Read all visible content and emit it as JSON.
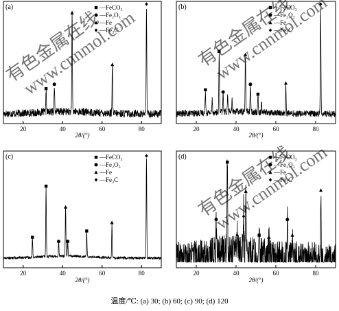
{
  "caption": "温度/℃: (a) 30; (b) 60; (c) 90; (d) 120",
  "watermark": [
    "有色金属在线",
    "www.cnnmol.com"
  ],
  "colors": {
    "line": "#000000",
    "axis": "#000000",
    "watermark": "#bdbdbd"
  },
  "chart_data": [
    {
      "type": "line",
      "panel_label": "(a)",
      "xlabel": "2θ/(°)",
      "xlim": [
        10,
        90
      ],
      "xticks": [
        20,
        40,
        60,
        80
      ],
      "xtick_labels": [
        "20",
        "40",
        "60",
        "80"
      ],
      "legend": [
        "—FeCO₃",
        "—Fe₂O₃",
        "—Fe",
        "—Fe₃C"
      ],
      "legend_markers": [
        "square",
        "circle",
        "triangle",
        "diamond"
      ],
      "noise": 0.035,
      "peaks": [
        {
          "x": 31.6,
          "y": 0.21,
          "marker": "square"
        },
        {
          "x": 35.8,
          "y": 0.25,
          "marker": "circle"
        },
        {
          "x": 44.8,
          "y": 0.9,
          "marker": "triangle"
        },
        {
          "x": 65.2,
          "y": 0.43,
          "marker": "triangle"
        },
        {
          "x": 82.5,
          "y": 0.98,
          "marker": "diamond"
        }
      ]
    },
    {
      "type": "line",
      "panel_label": "(b)",
      "xlabel": "2θ/(°)",
      "xlim": [
        10,
        90
      ],
      "xticks": [
        20,
        40,
        60,
        80
      ],
      "xtick_labels": [
        "20",
        "40",
        "60",
        "80"
      ],
      "legend": [
        "—FeCO₃",
        "—Fe₂O₃",
        "—Fe",
        "—Fe₃C"
      ],
      "legend_markers": [
        "square",
        "circle",
        "triangle",
        "diamond"
      ],
      "noise": 0.03,
      "peaks": [
        {
          "x": 24.6,
          "y": 0.2,
          "marker": "square"
        },
        {
          "x": 28.0,
          "y": 0.12,
          "marker": "none"
        },
        {
          "x": 31.5,
          "y": 0.55,
          "marker": "square"
        },
        {
          "x": 33.5,
          "y": 0.18,
          "marker": "circle"
        },
        {
          "x": 35.8,
          "y": 0.16,
          "marker": "none"
        },
        {
          "x": 38.0,
          "y": 0.1,
          "marker": "none"
        },
        {
          "x": 44.7,
          "y": 0.52,
          "marker": "triangle"
        },
        {
          "x": 47.2,
          "y": 0.25,
          "marker": "circle"
        },
        {
          "x": 51.0,
          "y": 0.16,
          "marker": "square"
        },
        {
          "x": 52.8,
          "y": 0.1,
          "marker": "none"
        },
        {
          "x": 65.0,
          "y": 0.26,
          "marker": "triangle"
        },
        {
          "x": 82.5,
          "y": 0.98,
          "marker": "diamond"
        }
      ]
    },
    {
      "type": "line",
      "panel_label": "(c)",
      "xlabel": "2θ/(°)",
      "xlim": [
        10,
        90
      ],
      "xticks": [
        20,
        40,
        60,
        80
      ],
      "xtick_labels": [
        "20",
        "40",
        "60",
        "80"
      ],
      "legend": [
        "—FeCO₃",
        "—Fe₂O₃",
        "—Fe",
        "—Fe₃C"
      ],
      "legend_markers": [
        "square",
        "circle",
        "triangle",
        "diamond"
      ],
      "noise": 0.012,
      "peaks": [
        {
          "x": 24.7,
          "y": 0.18,
          "marker": "square"
        },
        {
          "x": 31.6,
          "y": 0.67,
          "marker": "square"
        },
        {
          "x": 38.0,
          "y": 0.14,
          "marker": "circle"
        },
        {
          "x": 41.5,
          "y": 0.47,
          "marker": "triangle"
        },
        {
          "x": 42.6,
          "y": 0.14,
          "marker": "circle"
        },
        {
          "x": 52.2,
          "y": 0.24,
          "marker": "square"
        },
        {
          "x": 65.0,
          "y": 0.32,
          "marker": "triangle"
        },
        {
          "x": 82.5,
          "y": 0.96,
          "marker": "diamond"
        }
      ]
    },
    {
      "type": "line",
      "panel_label": "(d)",
      "xlabel": "2θ/(°)",
      "xlim": [
        10,
        90
      ],
      "xticks": [
        20,
        40,
        60,
        80
      ],
      "xtick_labels": [
        "20",
        "40",
        "60",
        "80"
      ],
      "legend": [
        "—FeCO₃",
        "—Fe₂O₃",
        "—Fe",
        "—Fe₃C"
      ],
      "legend_markers": [
        "square",
        "circle",
        "triangle",
        "diamond"
      ],
      "noise": 0.16,
      "peaks": [
        {
          "x": 30.0,
          "y": 0.35,
          "marker": "circle"
        },
        {
          "x": 35.6,
          "y": 0.9,
          "marker": "square"
        },
        {
          "x": 40.5,
          "y": 0.2,
          "marker": "diamond"
        },
        {
          "x": 43.8,
          "y": 0.38,
          "marker": "diamond"
        },
        {
          "x": 44.9,
          "y": 0.62,
          "marker": "triangle"
        },
        {
          "x": 51.6,
          "y": 0.2,
          "marker": "square"
        },
        {
          "x": 56.5,
          "y": 0.18,
          "marker": "triangle"
        },
        {
          "x": 65.8,
          "y": 0.35,
          "marker": "circle"
        },
        {
          "x": 68.3,
          "y": 0.2,
          "marker": "triangle"
        },
        {
          "x": 82.6,
          "y": 0.63,
          "marker": "triangle"
        }
      ]
    }
  ]
}
